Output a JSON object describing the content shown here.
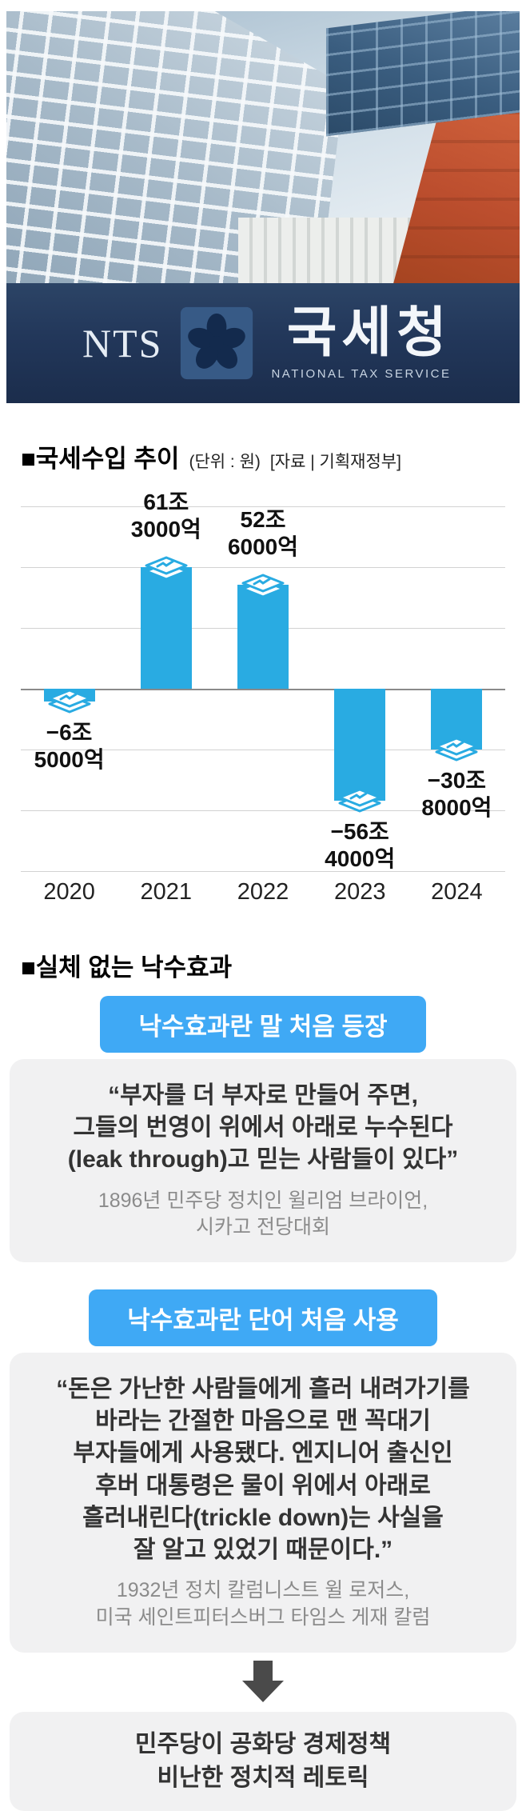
{
  "photo": {
    "sign": {
      "nts": "NTS",
      "korean": "국세청",
      "english": "NATIONAL TAX SERVICE"
    }
  },
  "chart": {
    "title": "■국세수입 추이",
    "unit": "(단위 : 원)",
    "source": "[자료 | 기획재정부]"
  },
  "chart_data": {
    "type": "bar",
    "title": "국세수입 추이",
    "unit_label": "원 (조/억 단위)",
    "categories": [
      "2020",
      "2021",
      "2022",
      "2023",
      "2024"
    ],
    "values": [
      -6.5,
      61.3,
      52.6,
      -56.4,
      -30.8
    ],
    "value_labels": [
      "−6조\n5000억",
      "61조\n3000억",
      "52조\n6000억",
      "−56조\n4000억",
      "−30조\n8000억"
    ],
    "bar_color": "#29ABE2",
    "baseline": 0,
    "grid": true,
    "ylim": [
      -70,
      75
    ],
    "legend": "none"
  },
  "trickle": {
    "title": "■실체 없는 낙수효과",
    "cards": [
      {
        "header": "낙수효과란 말 처음 등장",
        "quote": "“부자를 더 부자로 만들어 주면,\n그들의 번영이 위에서 아래로 누수된다\n(leak through)고 믿는 사람들이 있다”",
        "attribution": "1896년 민주당 정치인 윌리엄 브라이언,\n시카고 전당대회"
      },
      {
        "header": "낙수효과란 단어 처음 사용",
        "quote": "“돈은 가난한 사람들에게 흘러 내려가기를\n바라는 간절한 마음으로 맨 꼭대기\n부자들에게 사용됐다. 엔지니어 출신인\n후버 대통령은 물이 위에서 아래로\n흘러내린다(trickle down)는 사실을\n잘 알고 있었기 때문이다.”",
        "attribution": "1932년 정치 칼럼니스트 윌 로저스,\n미국 세인트피터스버그 타임스 게재 칼럼"
      }
    ],
    "conclusion": "민주당이 공화당 경제정책\n비난한 정치적 레토릭"
  },
  "colors": {
    "accent_blue": "#3FA9F5",
    "bar_cyan": "#29ABE2",
    "box_gray": "#F1F1F2",
    "sign_navy": "#22375A",
    "arrow_gray": "#4A4A4A"
  }
}
